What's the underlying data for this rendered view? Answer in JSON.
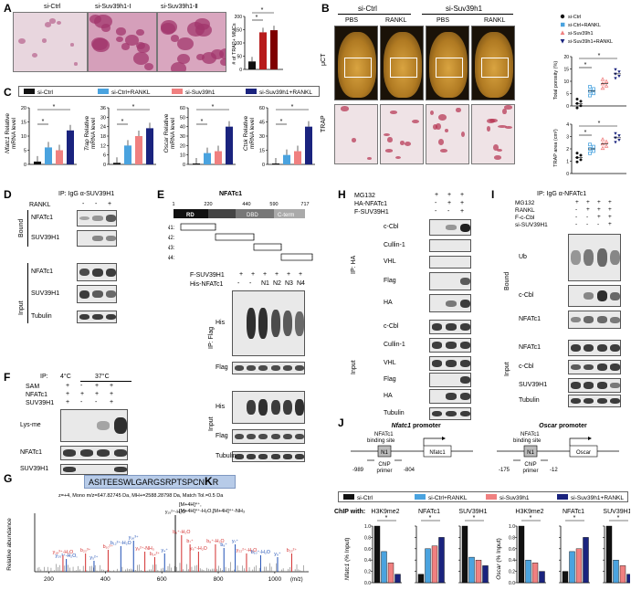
{
  "panels": {
    "A": {
      "letter": "A",
      "labels": [
        "si-Ctrl",
        "si-Suv39h1-Ⅰ",
        "si-Suv39h1-Ⅱ"
      ],
      "ylabel": "# of TRAP+ MNCs",
      "yticks": [
        "0",
        "50",
        "100",
        "150",
        "200"
      ],
      "sig": "*"
    },
    "B": {
      "letter": "B",
      "groups": [
        "si-Ctrl",
        "si-Suv39h1"
      ],
      "treat": [
        "PBS",
        "RANKL",
        "PBS",
        "RANKL"
      ],
      "rows": [
        "μCT",
        "TRAP"
      ],
      "legend": [
        "si-Ctrl",
        "si-Ctrl+RANKL",
        "si-Suv39h1",
        "si-Suv39h1+RANKL"
      ],
      "plot1": {
        "ylabel": "Total porosity (%)",
        "yticks": [
          "0",
          "5",
          "10",
          "15",
          "20"
        ]
      },
      "plot2": {
        "ylabel": "TRAP area (cm²)",
        "yticks": [
          "0",
          "1",
          "2",
          "3",
          "4"
        ]
      }
    },
    "C": {
      "letter": "C",
      "legend": [
        "si-Ctrl",
        "si-Ctrl+RANKL",
        "si-Suv39h1",
        "si-Suv39h1+RANKL"
      ],
      "plots": [
        {
          "gene": "Nfatc1",
          "suffix": " Relative",
          "ylabel2": "mRNA level",
          "yticks": [
            "0",
            "5",
            "10",
            "15",
            "20"
          ]
        },
        {
          "gene": "Trap",
          "suffix": " Relative",
          "ylabel2": "mRNA level",
          "yticks": [
            "0",
            "6",
            "12",
            "18",
            "24",
            "30",
            "36"
          ]
        },
        {
          "gene": "Oscar",
          "suffix": " Relative",
          "ylabel2": "mRNA level",
          "yticks": [
            "0",
            "10",
            "20",
            "30",
            "40",
            "50",
            "60"
          ]
        },
        {
          "gene": "Ctsk",
          "suffix": " Relative",
          "ylabel2": "mRNA level",
          "yticks": [
            "0",
            "15",
            "30",
            "45",
            "60"
          ]
        }
      ]
    },
    "D": {
      "letter": "D",
      "ip": "IP:",
      "ipval": "IgG α-SUV39H1",
      "rankl": "RANKL",
      "signs": [
        "-",
        "-",
        "+"
      ],
      "bound": "Bound",
      "input": "Input",
      "rows": [
        "NFATc1",
        "SUV39H1",
        "NFATc1",
        "SUV39H1",
        "Tubulin"
      ]
    },
    "E": {
      "letter": "E",
      "title": "NFATc1",
      "coords": [
        "1",
        "220",
        "440",
        "590",
        "717"
      ],
      "domains": [
        "RD",
        "DBD",
        "C-term"
      ],
      "frags": [
        "N1:",
        "N2:",
        "N3:",
        "N4:"
      ],
      "f_suv": "F-SUV39H1",
      "his_nfat": "His-NFATc1",
      "signs1": [
        "+",
        "+",
        "+",
        "+",
        "+",
        "+"
      ],
      "signs2": [
        "-",
        "-",
        "N1",
        "N2",
        "N3",
        "N4"
      ],
      "ipflag": "IP: Flag",
      "input": "Input",
      "rows": [
        "His",
        "Flag",
        "His",
        "Flag",
        "Tubulin"
      ]
    },
    "F": {
      "letter": "F",
      "ip": "IP:",
      "temps": [
        "4°C",
        "37°C"
      ],
      "sam": "SAM",
      "nfat": "NFATc1",
      "suv": "SUV39H1",
      "sam_s": [
        "+",
        "-",
        "+",
        "+"
      ],
      "nfat_s": [
        "+",
        "+",
        "+",
        "+"
      ],
      "suv_s": [
        "+",
        "-",
        "-",
        "+"
      ],
      "rows": [
        "Lys-me",
        "NFATc1",
        "SUV39H1"
      ]
    },
    "G": {
      "letter": "G",
      "peptide": "ASITEESWLGARGSRPTSPCN",
      "pepK": "K",
      "pepR": "R",
      "info": "z=+4, Mono m/z=647.82745 Da, MH+=2588.28798 Da, Match Tol.=0.5 Da",
      "ylabel": "Relative abundance",
      "xlabel": "(m/z)",
      "xticks": [
        "200",
        "400",
        "600",
        "800",
        "1000"
      ],
      "top": "[M+4H]⁴⁺,",
      "top2": "[M+4H]⁴⁺-H₂O,[M+4H]⁴⁺-NH₃",
      "peaks": [
        "y₁₈³⁺-H₂O",
        "y₂₀³⁺-H₂O,",
        "b₂₂³⁺",
        "y₅²⁺",
        "b₁₀²⁺",
        "b₁₂²⁺-H₂O",
        "y₁₆³⁺",
        "y₈²⁺-NH₃",
        "b₁₄²⁺",
        "y₄⁺",
        "y₁₉²⁺-H₂O",
        "b₆⁺-H₂O",
        "b₇⁺",
        "y₆⁺-H₂O",
        "b₈⁺-H₂O",
        "b₉⁺",
        "y₇⁺",
        "y₂₂²⁺-H₂O",
        "b₁₀⁺-H₂O",
        "y₉⁺",
        "b₂₂²⁺"
      ]
    },
    "H": {
      "letter": "H",
      "mg": "MG132",
      "ha": "HA-NFATc1",
      "f": "F-SUV39H1",
      "mg_s": [
        "+",
        "+",
        "+"
      ],
      "ha_s": [
        "-",
        "+",
        "+"
      ],
      "f_s": [
        "-",
        "-",
        "+"
      ],
      "ipha": "IP: HA",
      "input": "Input",
      "rows": [
        "c-Cbl",
        "Cullin-1",
        "VHL",
        "Flag",
        "HA",
        "c-Cbl",
        "Cullin-1",
        "VHL",
        "Flag",
        "HA",
        "Tubulin"
      ]
    },
    "I": {
      "letter": "I",
      "ip": "IP:",
      "ipval": "IgG α-NFATc1",
      "mg": "MG132",
      "rankl": "RANKL",
      "fc": "F-c-Cbl",
      "si": "si-SUV39H1",
      "mg_s": [
        "+",
        "+",
        "+",
        "+"
      ],
      "r_s": [
        "-",
        "+",
        "+",
        "+"
      ],
      "fc_s": [
        "-",
        "-",
        "+",
        "+"
      ],
      "si_s": [
        "-",
        "-",
        "-",
        "+"
      ],
      "bound": "Bound",
      "input": "Input",
      "rows": [
        "Ub",
        "c-Cbl",
        "NFATc1",
        "NFATc1",
        "c-Cbl",
        "SUV39H1",
        "Tubulin"
      ]
    },
    "J": {
      "letter": "J",
      "p1": "Nfatc1 promoter",
      "p2": "Oscar promoter",
      "site": "NFATc1",
      "site2": "binding site",
      "n1": "N1",
      "chip": "ChIP",
      "primer": "primer",
      "gene1": "Nfatc1",
      "gene2": "Oscar",
      "pos1": [
        "-989",
        "-804"
      ],
      "pos2": [
        "-175",
        "-12"
      ],
      "legend": [
        "si-Ctrl",
        "si-Ctrl+RANKL",
        "si-Suv39h1",
        "si-Suv39h1+RANKL"
      ],
      "chipwith": "ChIP with:",
      "marks": [
        "H3K9me2",
        "NFATc1",
        "SUV39H1",
        "H3K9me2",
        "NFATc1",
        "SUV39H1"
      ],
      "yl1": "Nfatc1",
      "yl2": "Oscar",
      "ylsuffix": " (% Input)",
      "yticks": [
        "0.0",
        "0.2",
        "0.4",
        "0.6",
        "0.8",
        "1.0"
      ]
    }
  },
  "colors": {
    "black": "#111111",
    "lightblue": "#4aa3df",
    "pink": "#f08080",
    "navy": "#1a237e",
    "red": "#b71c1c",
    "darkred": "#7f0000"
  },
  "chart_data": [
    {
      "type": "bar",
      "panel": "A",
      "categories": [
        "si-Ctrl",
        "si-Suv39h1-Ⅰ",
        "si-Suv39h1-Ⅱ"
      ],
      "values": [
        30,
        140,
        148
      ],
      "ylim": [
        0,
        200
      ]
    },
    {
      "type": "bar",
      "panel": "C",
      "gene": "Nfatc1",
      "categories": [
        "si-Ctrl",
        "si-Ctrl+RANKL",
        "si-Suv39h1",
        "si-Suv39h1+RANKL"
      ],
      "values": [
        1,
        6,
        5,
        12
      ],
      "ylim": [
        0,
        20
      ]
    },
    {
      "type": "bar",
      "panel": "C",
      "gene": "Trap",
      "categories": [
        "si-Ctrl",
        "si-Ctrl+RANKL",
        "si-Suv39h1",
        "si-Suv39h1+RANKL"
      ],
      "values": [
        1,
        12,
        18,
        23
      ],
      "ylim": [
        0,
        36
      ]
    },
    {
      "type": "bar",
      "panel": "C",
      "gene": "Oscar",
      "categories": [
        "si-Ctrl",
        "si-Ctrl+RANKL",
        "si-Suv39h1",
        "si-Suv39h1+RANKL"
      ],
      "values": [
        1,
        12,
        14,
        40
      ],
      "ylim": [
        0,
        60
      ]
    },
    {
      "type": "bar",
      "panel": "C",
      "gene": "Ctsk",
      "categories": [
        "si-Ctrl",
        "si-Ctrl+RANKL",
        "si-Suv39h1",
        "si-Suv39h1+RANKL"
      ],
      "values": [
        1,
        10,
        14,
        40
      ],
      "ylim": [
        0,
        60
      ]
    },
    {
      "type": "scatter",
      "panel": "B",
      "ylabel": "Total porosity (%)",
      "categories": [
        "si-Ctrl",
        "si-Ctrl+RANKL",
        "si-Suv39h1",
        "si-Suv39h1+RANKL"
      ],
      "values": [
        1,
        6,
        9,
        13
      ],
      "ylim": [
        0,
        20
      ]
    },
    {
      "type": "scatter",
      "panel": "B",
      "ylabel": "TRAP area (cm²)",
      "categories": [
        "si-Ctrl",
        "si-Ctrl+RANKL",
        "si-Suv39h1",
        "si-Suv39h1+RANKL"
      ],
      "values": [
        1.3,
        2.0,
        2.4,
        2.9
      ],
      "ylim": [
        0,
        4
      ]
    },
    {
      "type": "bar",
      "panel": "J",
      "mark": "H3K9me2",
      "promoter": "Nfatc1",
      "values": [
        1.0,
        0.55,
        0.35,
        0.15
      ],
      "ylim": [
        0,
        1.0
      ]
    },
    {
      "type": "bar",
      "panel": "J",
      "mark": "NFATc1",
      "promoter": "Nfatc1",
      "values": [
        0.15,
        0.6,
        0.65,
        0.8
      ],
      "ylim": [
        0,
        1.0
      ]
    },
    {
      "type": "bar",
      "panel": "J",
      "mark": "SUV39H1",
      "promoter": "Nfatc1",
      "values": [
        1.0,
        0.45,
        0.4,
        0.3
      ],
      "ylim": [
        0,
        1.0
      ]
    },
    {
      "type": "bar",
      "panel": "J",
      "mark": "H3K9me2",
      "promoter": "Oscar",
      "values": [
        1.0,
        0.4,
        0.35,
        0.2
      ],
      "ylim": [
        0,
        1.0
      ]
    },
    {
      "type": "bar",
      "panel": "J",
      "mark": "NFATc1",
      "promoter": "Oscar",
      "values": [
        0.2,
        0.55,
        0.6,
        0.8
      ],
      "ylim": [
        0,
        1.0
      ]
    },
    {
      "type": "bar",
      "panel": "J",
      "mark": "SUV39H1",
      "promoter": "Oscar",
      "values": [
        1.0,
        0.4,
        0.3,
        0.15
      ],
      "ylim": [
        0,
        1.0
      ]
    }
  ]
}
